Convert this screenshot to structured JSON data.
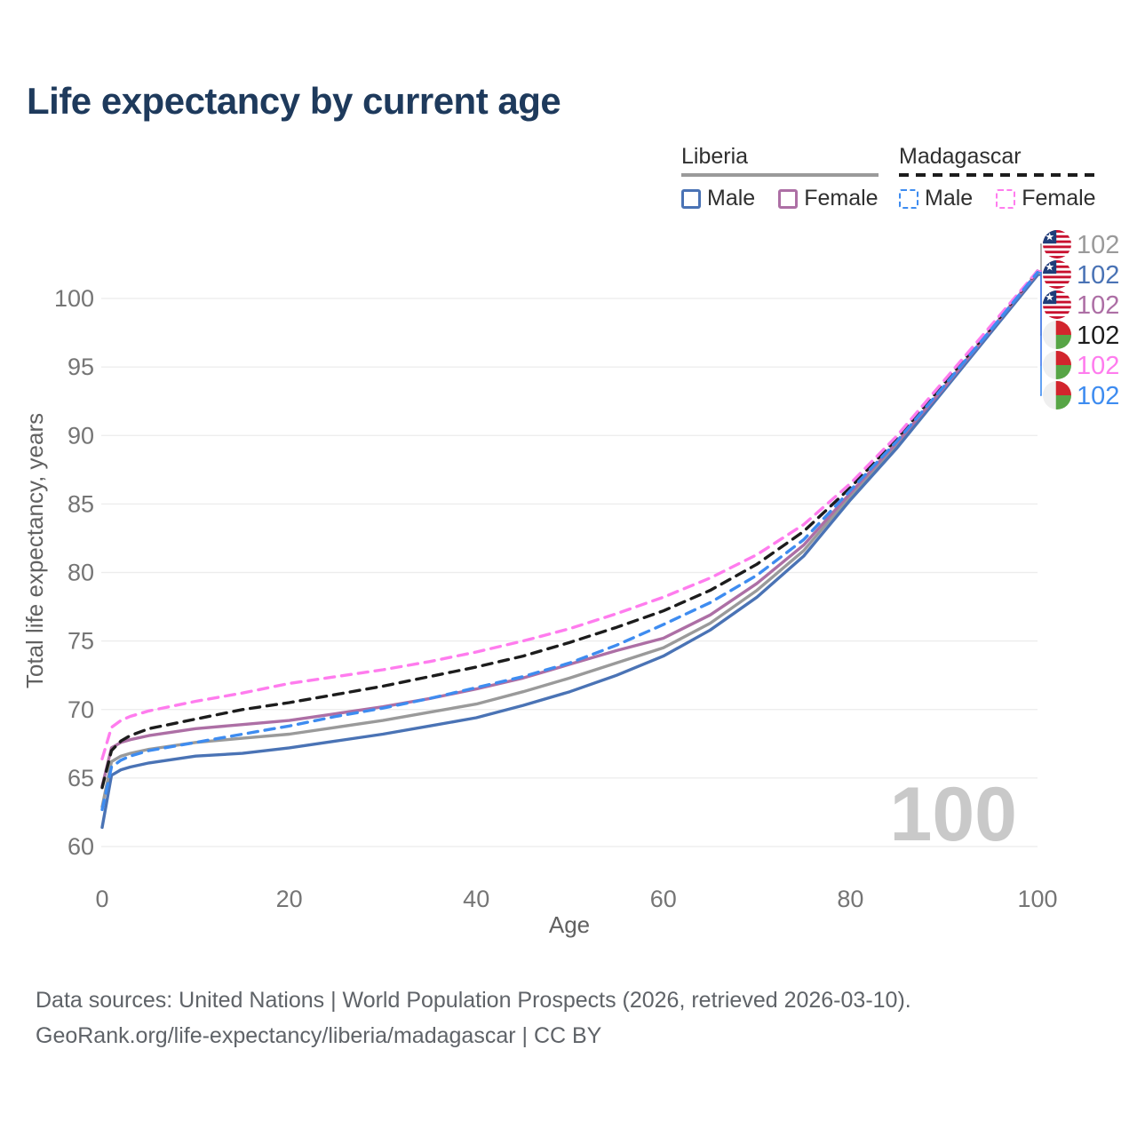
{
  "title": {
    "text": "Life expectancy by current age",
    "color": "#1e3a5c"
  },
  "legend": {
    "groups": [
      {
        "label": "Liberia",
        "line_color": "#9a9a9a",
        "line_style": "solid",
        "items": [
          {
            "label": "Male",
            "color": "#4a73b5",
            "box_style": "solid"
          },
          {
            "label": "Female",
            "color": "#ad6fa5",
            "box_style": "solid"
          }
        ]
      },
      {
        "label": "Madagascar",
        "line_color": "#1c1c1c",
        "line_style": "dashed",
        "items": [
          {
            "label": "Male",
            "color": "#3e8cf0",
            "box_style": "dashed"
          },
          {
            "label": "Female",
            "color": "#ff7cee",
            "box_style": "dashed"
          }
        ]
      }
    ]
  },
  "watermark": {
    "text": "100",
    "color": "#c9c9c9"
  },
  "chart_data": {
    "type": "line",
    "title": "Life expectancy by current age",
    "xlabel": "Age",
    "ylabel": "Total life expectancy, years",
    "xlim": [
      0,
      100
    ],
    "ylim": [
      60,
      102.5
    ],
    "xticks": [
      0,
      20,
      40,
      60,
      80,
      100
    ],
    "yticks": [
      60,
      65,
      70,
      75,
      80,
      85,
      90,
      95,
      100
    ],
    "grid": "horizontal",
    "grid_color": "#ececec",
    "tick_color": "#757575",
    "axis_title_color": "#616161",
    "x": [
      0,
      1,
      2,
      3,
      5,
      10,
      15,
      20,
      25,
      30,
      35,
      40,
      45,
      50,
      55,
      60,
      65,
      70,
      75,
      80,
      85,
      90,
      95,
      100
    ],
    "series": [
      {
        "name": "Liberia",
        "sex": "total",
        "color": "#9a9a9a",
        "dashed": false,
        "flag": "liberia",
        "end_label": "102",
        "label_row": 0,
        "values": [
          62.9,
          66.2,
          66.6,
          66.8,
          67.1,
          67.6,
          67.9,
          68.2,
          68.7,
          69.2,
          69.8,
          70.4,
          71.3,
          72.3,
          73.4,
          74.5,
          76.3,
          78.7,
          81.6,
          85.6,
          89.3,
          93.4,
          97.6,
          101.8
        ]
      },
      {
        "name": "Liberia Male",
        "sex": "male",
        "color": "#4a73b5",
        "dashed": false,
        "flag": "liberia",
        "end_label": "102",
        "label_row": 1,
        "values": [
          61.4,
          65.2,
          65.6,
          65.8,
          66.1,
          66.6,
          66.8,
          67.2,
          67.7,
          68.2,
          68.8,
          69.4,
          70.3,
          71.3,
          72.5,
          73.9,
          75.8,
          78.2,
          81.2,
          85.3,
          89.1,
          93.3,
          97.5,
          101.7
        ]
      },
      {
        "name": "Liberia Female",
        "sex": "female",
        "color": "#ad6fa5",
        "dashed": false,
        "flag": "liberia",
        "end_label": "102",
        "label_row": 2,
        "values": [
          64.4,
          67.2,
          67.6,
          67.8,
          68.1,
          68.6,
          68.9,
          69.2,
          69.7,
          70.2,
          70.8,
          71.5,
          72.3,
          73.3,
          74.3,
          75.2,
          76.9,
          79.2,
          82.0,
          85.8,
          89.5,
          93.5,
          97.7,
          101.9
        ]
      },
      {
        "name": "Madagascar",
        "sex": "total",
        "color": "#1c1c1c",
        "dashed": true,
        "flag": "madagascar",
        "end_label": "102",
        "label_row": 3,
        "values": [
          64.3,
          67.0,
          67.7,
          68.1,
          68.6,
          69.3,
          70.0,
          70.5,
          71.1,
          71.7,
          72.4,
          73.1,
          73.9,
          74.9,
          76.0,
          77.2,
          78.7,
          80.6,
          83.0,
          86.2,
          89.8,
          93.8,
          97.8,
          102.0
        ]
      },
      {
        "name": "Madagascar Female",
        "sex": "female",
        "color": "#ff7cee",
        "dashed": true,
        "flag": "madagascar",
        "end_label": "102",
        "label_row": 4,
        "values": [
          66.4,
          68.7,
          69.2,
          69.5,
          69.9,
          70.6,
          71.2,
          71.9,
          72.4,
          72.9,
          73.5,
          74.2,
          75.0,
          75.9,
          77.0,
          78.2,
          79.6,
          81.3,
          83.5,
          86.5,
          90.0,
          94.0,
          98.0,
          102.0
        ]
      },
      {
        "name": "Madagascar Male",
        "sex": "male",
        "color": "#3e8cf0",
        "dashed": true,
        "flag": "madagascar",
        "end_label": "102",
        "label_row": 5,
        "values": [
          62.7,
          65.8,
          66.3,
          66.6,
          67.0,
          67.6,
          68.2,
          68.8,
          69.5,
          70.1,
          70.8,
          71.6,
          72.4,
          73.4,
          74.7,
          76.2,
          77.8,
          79.8,
          82.4,
          86.0,
          89.6,
          93.6,
          97.7,
          101.9
        ]
      }
    ],
    "flag_colors": {
      "liberia_red": "#c8102e",
      "liberia_blue": "#1f3d7a",
      "liberia_white": "#ffffff",
      "madagascar_white": "#efefef",
      "madagascar_red": "#d2252d",
      "madagascar_green": "#57a546"
    }
  },
  "footer": {
    "line1": "Data sources: United Nations | World Population Prospects (2026, retrieved 2026-03-10).",
    "line2": "GeoRank.org/life-expectancy/liberia/madagascar | CC BY"
  }
}
